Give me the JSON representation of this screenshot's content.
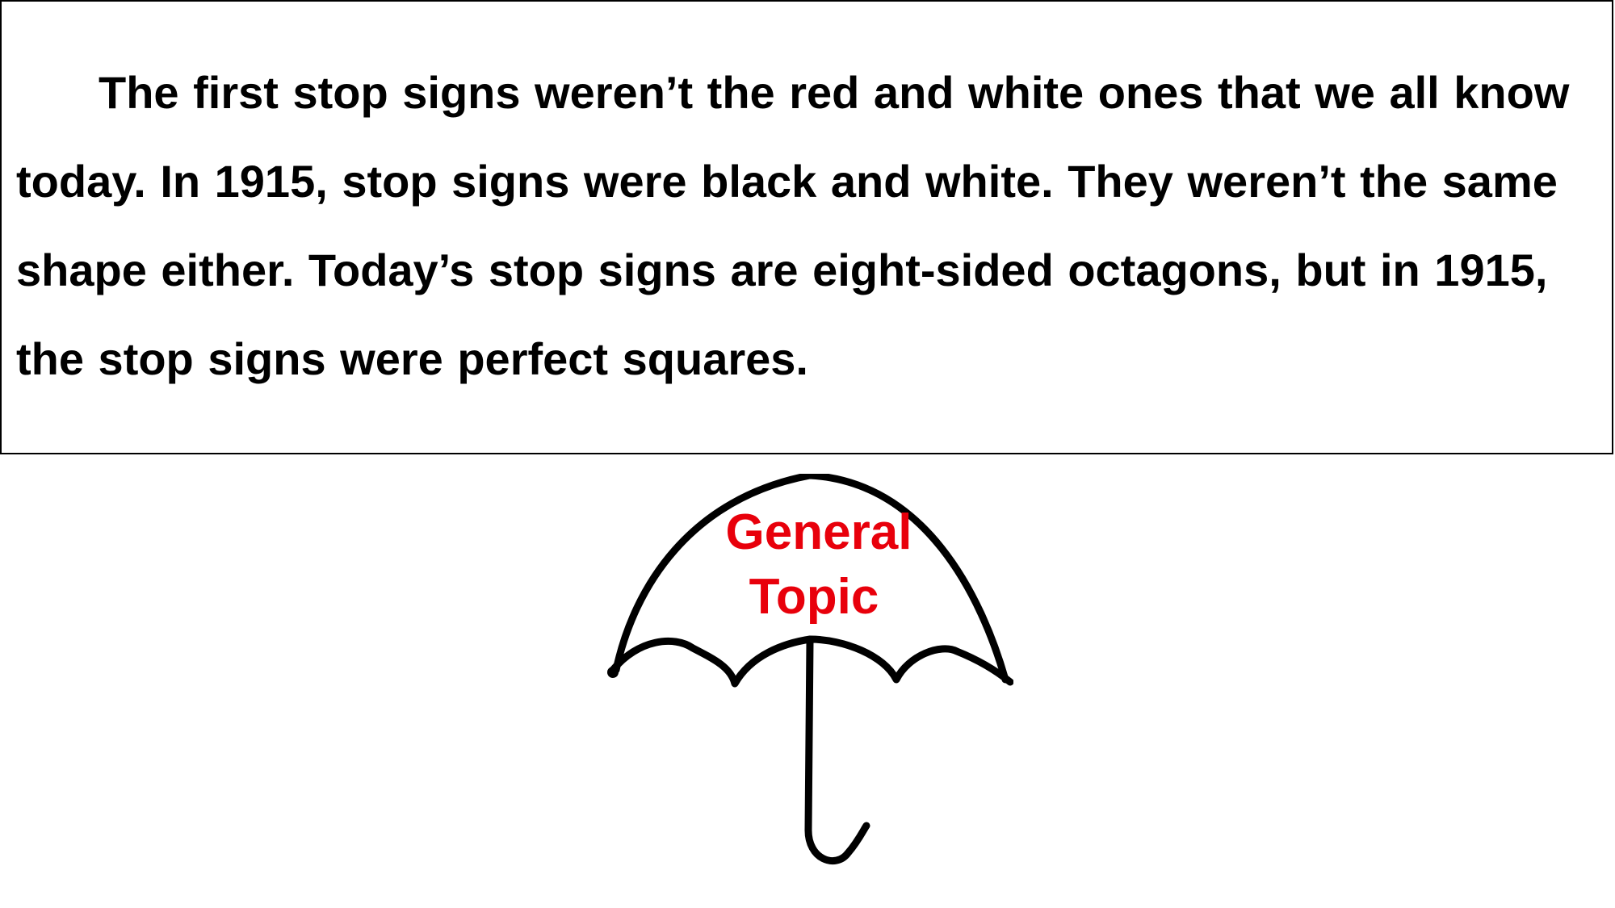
{
  "passage": {
    "text": "The first stop signs weren’t the red and white ones that we all know today.  In 1915, stop signs were black and white.  They weren’t the same shape either.  Today’s stop signs are eight-sided octagons, but in 1915, the stop signs were perfect squares."
  },
  "umbrella": {
    "label_line_1": "General",
    "label_line_2": "Topic",
    "label_color": "#e8000b",
    "icon": "umbrella-icon"
  }
}
